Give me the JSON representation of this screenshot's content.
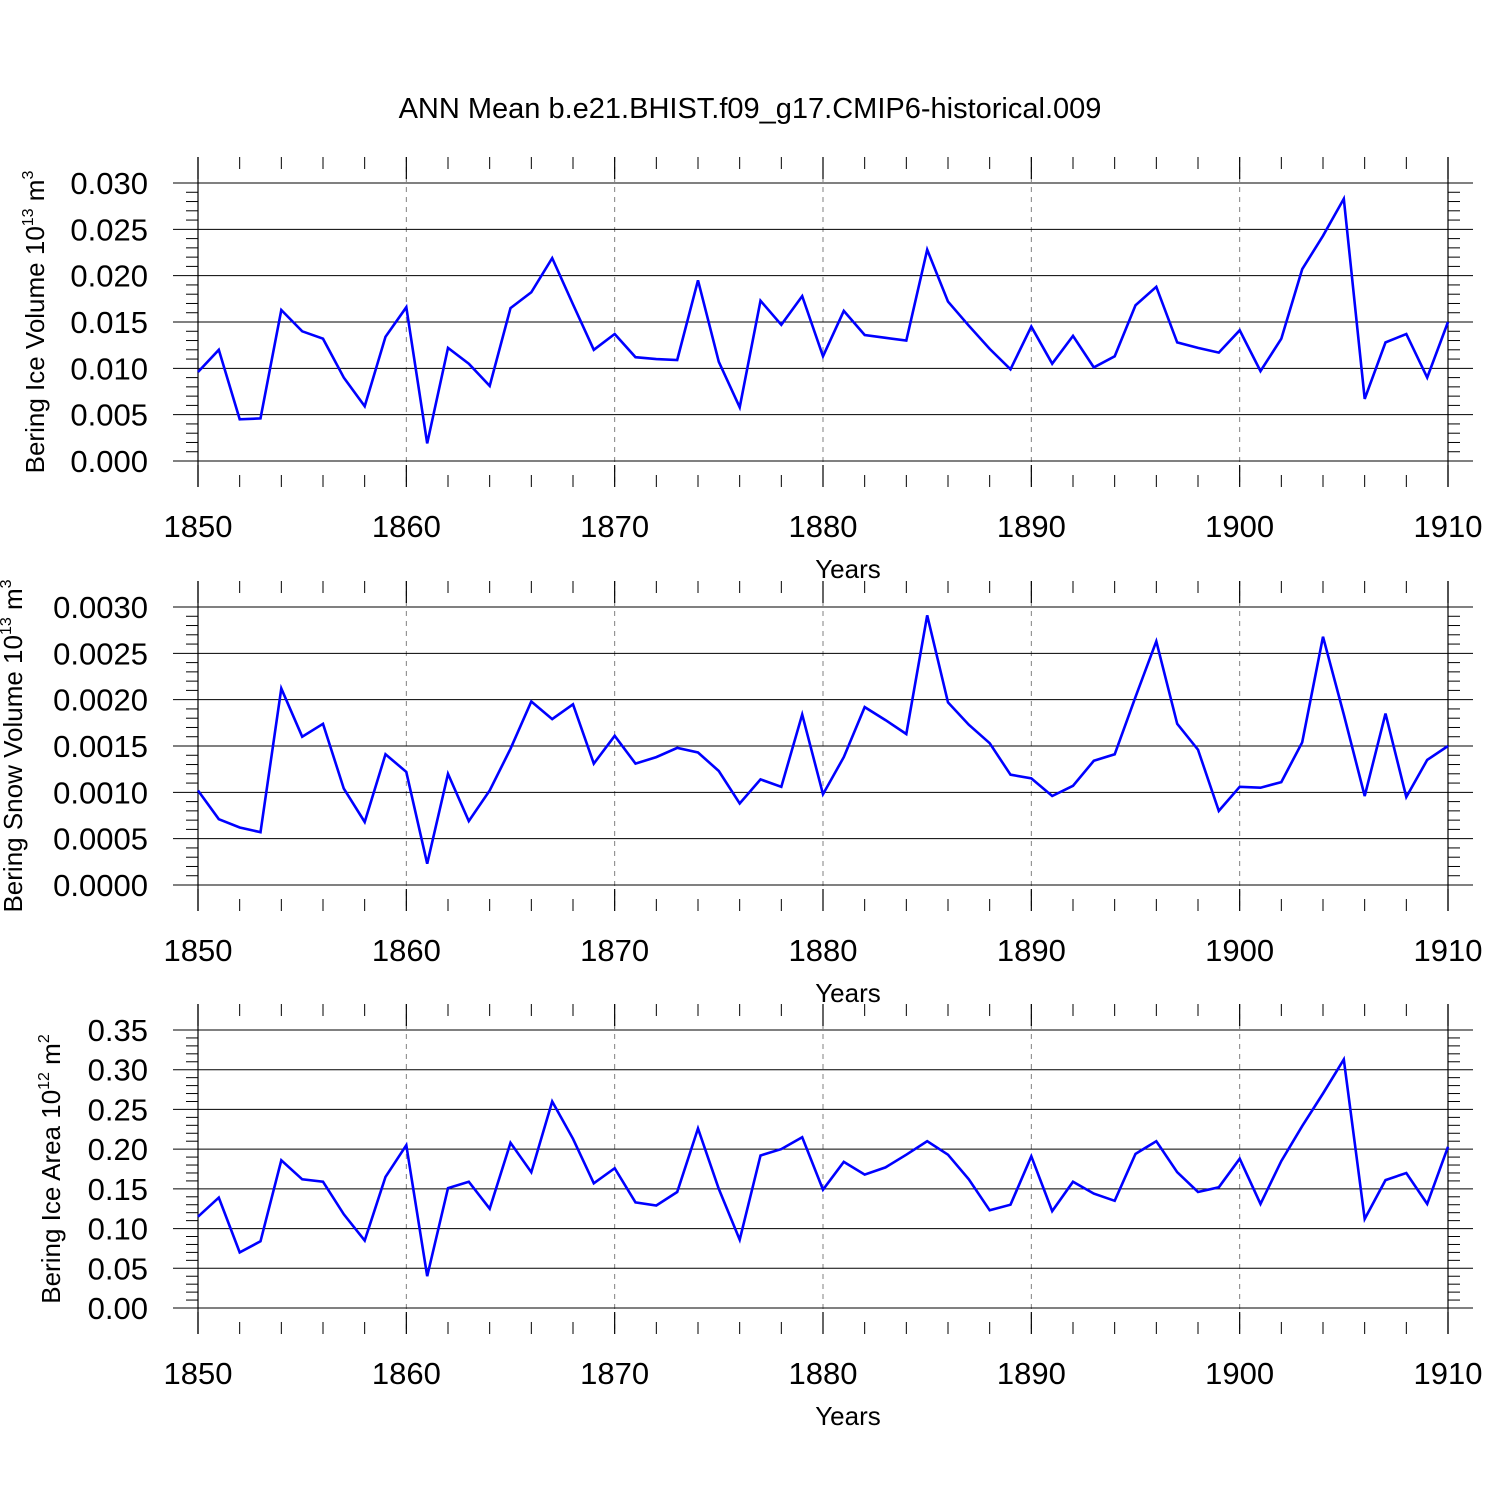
{
  "figure_title": "ANN Mean b.e21.BHIST.f09_g17.CMIP6-historical.009",
  "colors": {
    "line": "#0000ff",
    "axis": "#000000",
    "grid": "#808080",
    "background": "#ffffff"
  },
  "chart_data": [
    {
      "type": "line",
      "name": "bering-ice-volume",
      "ylabel_prefix": "Bering Ice Volume 10",
      "ylabel_exponent": "13",
      "ylabel_unit": " m",
      "ylabel_unit_exponent": "3",
      "xlabel": "Years",
      "xlim": [
        1850,
        1910
      ],
      "ylim": [
        0,
        0.03
      ],
      "xticks": [
        "1850",
        "1860",
        "1870",
        "1880",
        "1890",
        "1900",
        "1910"
      ],
      "yticks": [
        "0.000",
        "0.005",
        "0.010",
        "0.015",
        "0.020",
        "0.025",
        "0.030"
      ],
      "grid": "vertical-dashed",
      "series": [
        {
          "name": "Bering Ice Volume",
          "x": [
            1850,
            1851,
            1852,
            1853,
            1854,
            1855,
            1856,
            1857,
            1858,
            1859,
            1860,
            1861,
            1862,
            1863,
            1864,
            1865,
            1866,
            1867,
            1868,
            1869,
            1870,
            1871,
            1872,
            1873,
            1874,
            1875,
            1876,
            1877,
            1878,
            1879,
            1880,
            1881,
            1882,
            1883,
            1884,
            1885,
            1886,
            1887,
            1888,
            1889,
            1890,
            1891,
            1892,
            1893,
            1894,
            1895,
            1896,
            1897,
            1898,
            1899,
            1900,
            1901,
            1902,
            1903,
            1904,
            1905,
            1906,
            1907,
            1908,
            1909,
            1910
          ],
          "values": [
            0.0096,
            0.012,
            0.0045,
            0.0046,
            0.0163,
            0.014,
            0.0132,
            0.009,
            0.0059,
            0.0134,
            0.0166,
            0.0019,
            0.0122,
            0.0105,
            0.0081,
            0.0165,
            0.0182,
            0.0219,
            0.0169,
            0.012,
            0.0137,
            0.0112,
            0.011,
            0.0109,
            0.0195,
            0.0107,
            0.0058,
            0.0173,
            0.0147,
            0.0178,
            0.0113,
            0.0162,
            0.0136,
            0.0133,
            0.013,
            0.0228,
            0.0172,
            0.0146,
            0.0121,
            0.0099,
            0.0145,
            0.0105,
            0.0135,
            0.0101,
            0.0113,
            0.0168,
            0.0188,
            0.0128,
            0.0122,
            0.0117,
            0.0141,
            0.0097,
            0.0132,
            0.0207,
            0.0243,
            0.0283,
            0.0067,
            0.0128,
            0.0137,
            0.009,
            0.015
          ]
        }
      ]
    },
    {
      "type": "line",
      "name": "bering-snow-volume",
      "ylabel_prefix": "Bering Snow Volume 10",
      "ylabel_exponent": "13",
      "ylabel_unit": " m",
      "ylabel_unit_exponent": "3",
      "xlabel": "Years",
      "xlim": [
        1850,
        1910
      ],
      "ylim": [
        0,
        0.003
      ],
      "xticks": [
        "1850",
        "1860",
        "1870",
        "1880",
        "1890",
        "1900",
        "1910"
      ],
      "yticks": [
        "0.0000",
        "0.0005",
        "0.0010",
        "0.0015",
        "0.0020",
        "0.0025",
        "0.0030"
      ],
      "grid": "vertical-dashed",
      "series": [
        {
          "name": "Bering Snow Volume",
          "x": [
            1850,
            1851,
            1852,
            1853,
            1854,
            1855,
            1856,
            1857,
            1858,
            1859,
            1860,
            1861,
            1862,
            1863,
            1864,
            1865,
            1866,
            1867,
            1868,
            1869,
            1870,
            1871,
            1872,
            1873,
            1874,
            1875,
            1876,
            1877,
            1878,
            1879,
            1880,
            1881,
            1882,
            1883,
            1884,
            1885,
            1886,
            1887,
            1888,
            1889,
            1890,
            1891,
            1892,
            1893,
            1894,
            1895,
            1896,
            1897,
            1898,
            1899,
            1900,
            1901,
            1902,
            1903,
            1904,
            1905,
            1906,
            1907,
            1908,
            1909,
            1910
          ],
          "values": [
            0.00102,
            0.00071,
            0.00062,
            0.00057,
            0.00212,
            0.0016,
            0.00174,
            0.00104,
            0.00068,
            0.00141,
            0.00122,
            0.00023,
            0.0012,
            0.00069,
            0.00102,
            0.00147,
            0.00198,
            0.00179,
            0.00195,
            0.00131,
            0.00161,
            0.00131,
            0.00138,
            0.00148,
            0.00143,
            0.00123,
            0.00088,
            0.00114,
            0.00106,
            0.00184,
            0.00098,
            0.00138,
            0.00192,
            0.00178,
            0.00163,
            0.00291,
            0.00197,
            0.00173,
            0.00153,
            0.00119,
            0.00115,
            0.00096,
            0.00107,
            0.00134,
            0.00141,
            0.00203,
            0.00263,
            0.00174,
            0.00146,
            0.0008,
            0.00106,
            0.00105,
            0.00111,
            0.00154,
            0.00268,
            0.00184,
            0.00096,
            0.00185,
            0.00095,
            0.00135,
            0.0015
          ]
        }
      ]
    },
    {
      "type": "line",
      "name": "bering-ice-area",
      "ylabel_prefix": "Bering Ice Area 10",
      "ylabel_exponent": "12",
      "ylabel_unit": " m",
      "ylabel_unit_exponent": "2",
      "xlabel": "Years",
      "xlim": [
        1850,
        1910
      ],
      "ylim": [
        0,
        0.35
      ],
      "xticks": [
        "1850",
        "1860",
        "1870",
        "1880",
        "1890",
        "1900",
        "1910"
      ],
      "yticks": [
        "0.00",
        "0.05",
        "0.10",
        "0.15",
        "0.20",
        "0.25",
        "0.30",
        "0.35"
      ],
      "grid": "vertical-dashed",
      "series": [
        {
          "name": "Bering Ice Area",
          "x": [
            1850,
            1851,
            1852,
            1853,
            1854,
            1855,
            1856,
            1857,
            1858,
            1859,
            1860,
            1861,
            1862,
            1863,
            1864,
            1865,
            1866,
            1867,
            1868,
            1869,
            1870,
            1871,
            1872,
            1873,
            1874,
            1875,
            1876,
            1877,
            1878,
            1879,
            1880,
            1881,
            1882,
            1883,
            1884,
            1885,
            1886,
            1887,
            1888,
            1889,
            1890,
            1891,
            1892,
            1893,
            1894,
            1895,
            1896,
            1897,
            1898,
            1899,
            1900,
            1901,
            1902,
            1903,
            1904,
            1905,
            1906,
            1907,
            1908,
            1909,
            1910
          ],
          "values": [
            0.115,
            0.139,
            0.07,
            0.084,
            0.186,
            0.162,
            0.159,
            0.118,
            0.085,
            0.165,
            0.205,
            0.04,
            0.151,
            0.159,
            0.125,
            0.208,
            0.171,
            0.26,
            0.213,
            0.157,
            0.176,
            0.133,
            0.129,
            0.146,
            0.226,
            0.15,
            0.086,
            0.192,
            0.2,
            0.215,
            0.149,
            0.184,
            0.168,
            0.177,
            0.193,
            0.21,
            0.193,
            0.162,
            0.123,
            0.13,
            0.191,
            0.122,
            0.159,
            0.144,
            0.135,
            0.194,
            0.21,
            0.171,
            0.146,
            0.152,
            0.188,
            0.131,
            0.185,
            0.229,
            0.27,
            0.313,
            0.112,
            0.161,
            0.17,
            0.131,
            0.203
          ]
        }
      ]
    }
  ]
}
